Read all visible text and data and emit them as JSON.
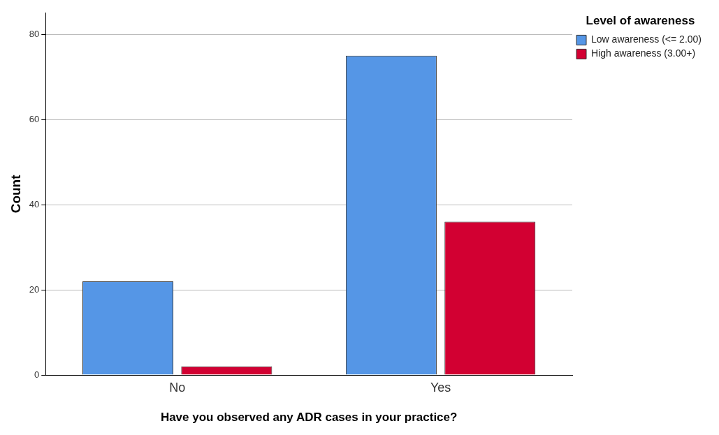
{
  "chart_data": {
    "type": "bar",
    "xlabel": "Have you observed any ADR cases in your practice?",
    "ylabel": "Count",
    "legend_title": "Level of awareness",
    "categories": [
      "No",
      "Yes"
    ],
    "series": [
      {
        "name": "Low awareness (<= 2.00)",
        "color": "#5596e6",
        "values": [
          22,
          75
        ]
      },
      {
        "name": "High awareness (3.00+)",
        "color": "#d20032",
        "values": [
          2,
          36
        ]
      }
    ],
    "ylim": [
      0,
      85
    ],
    "yticks": [
      0,
      20,
      40,
      60,
      80
    ],
    "grid": "y",
    "legend": "top right"
  }
}
